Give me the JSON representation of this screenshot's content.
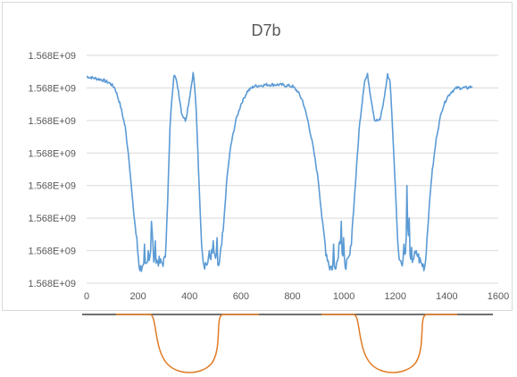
{
  "chart_data": {
    "type": "line",
    "title": "D7b",
    "xlabel": "",
    "ylabel": "",
    "xlim": [
      0,
      1600
    ],
    "x_ticks": [
      "0",
      "200",
      "400",
      "600",
      "800",
      "1000",
      "1200",
      "1400",
      "1600"
    ],
    "y_ticks": [
      "1.568E+09",
      "1.568E+09",
      "1.568E+09",
      "1.568E+09",
      "1.568E+09",
      "1.568E+09",
      "1.568E+09",
      "1.568E+09"
    ],
    "gridlines": "horizontal",
    "legend": "none",
    "series": [
      {
        "color": "#5b9bd5",
        "points": [
          [
            0,
            6.35
          ],
          [
            30,
            6.3
          ],
          [
            60,
            6.25
          ],
          [
            90,
            6.15
          ],
          [
            110,
            6.0
          ],
          [
            130,
            5.5
          ],
          [
            150,
            4.8
          ],
          [
            165,
            3.8
          ],
          [
            180,
            2.4
          ],
          [
            195,
            1.3
          ],
          [
            205,
            0.5
          ],
          [
            215,
            0.4
          ],
          [
            230,
            0.5
          ],
          [
            245,
            0.8
          ],
          [
            255,
            1.5
          ],
          [
            262,
            0.6
          ],
          [
            275,
            0.7
          ],
          [
            290,
            0.6
          ],
          [
            305,
            0.7
          ],
          [
            315,
            2.5
          ],
          [
            325,
            5.0
          ],
          [
            340,
            6.5
          ],
          [
            355,
            6.0
          ],
          [
            370,
            5.2
          ],
          [
            385,
            5.0
          ],
          [
            400,
            5.7
          ],
          [
            415,
            6.5
          ],
          [
            425,
            5.5
          ],
          [
            435,
            3.5
          ],
          [
            445,
            1.5
          ],
          [
            455,
            0.6
          ],
          [
            470,
            0.6
          ],
          [
            485,
            0.9
          ],
          [
            500,
            0.8
          ],
          [
            515,
            0.5
          ],
          [
            530,
            1.5
          ],
          [
            545,
            3.2
          ],
          [
            560,
            4.2
          ],
          [
            580,
            5.0
          ],
          [
            600,
            5.5
          ],
          [
            625,
            5.9
          ],
          [
            650,
            6.05
          ],
          [
            700,
            6.1
          ],
          [
            750,
            6.1
          ],
          [
            800,
            6.05
          ],
          [
            820,
            5.9
          ],
          [
            840,
            5.6
          ],
          [
            860,
            5.0
          ],
          [
            880,
            4.2
          ],
          [
            900,
            3.2
          ],
          [
            915,
            2.0
          ],
          [
            930,
            1.0
          ],
          [
            945,
            0.5
          ],
          [
            960,
            0.5
          ],
          [
            975,
            0.7
          ],
          [
            985,
            1.5
          ],
          [
            995,
            0.8
          ],
          [
            1005,
            0.6
          ],
          [
            1015,
            0.6
          ],
          [
            1025,
            0.9
          ],
          [
            1040,
            2.5
          ],
          [
            1060,
            4.8
          ],
          [
            1080,
            6.2
          ],
          [
            1092,
            6.4
          ],
          [
            1105,
            5.7
          ],
          [
            1120,
            5.0
          ],
          [
            1140,
            5.0
          ],
          [
            1155,
            5.6
          ],
          [
            1170,
            6.4
          ],
          [
            1180,
            6.2
          ],
          [
            1195,
            3.8
          ],
          [
            1210,
            1.2
          ],
          [
            1220,
            0.6
          ],
          [
            1235,
            0.8
          ],
          [
            1248,
            1.7
          ],
          [
            1258,
            0.6
          ],
          [
            1270,
            0.8
          ],
          [
            1285,
            0.9
          ],
          [
            1300,
            0.6
          ],
          [
            1315,
            0.5
          ],
          [
            1325,
            1.6
          ],
          [
            1340,
            3.2
          ],
          [
            1360,
            4.5
          ],
          [
            1380,
            5.3
          ],
          [
            1400,
            5.7
          ],
          [
            1420,
            5.9
          ],
          [
            1440,
            6.0
          ],
          [
            1460,
            6.0
          ],
          [
            1480,
            6.0
          ],
          [
            1500,
            6.05
          ]
        ],
        "spikes": [
          [
            225,
            1.2
          ],
          [
            240,
            1.0
          ],
          [
            252,
            1.9
          ],
          [
            268,
            1.3
          ],
          [
            476,
            1.0
          ],
          [
            492,
            1.3
          ],
          [
            508,
            1.4
          ],
          [
            960,
            1.2
          ],
          [
            990,
            1.9
          ],
          [
            1000,
            1.4
          ],
          [
            1233,
            1.2
          ],
          [
            1245,
            3.0
          ],
          [
            1255,
            2.0
          ],
          [
            1264,
            1.1
          ]
        ]
      }
    ],
    "y_scale_note_hidden": true
  }
}
